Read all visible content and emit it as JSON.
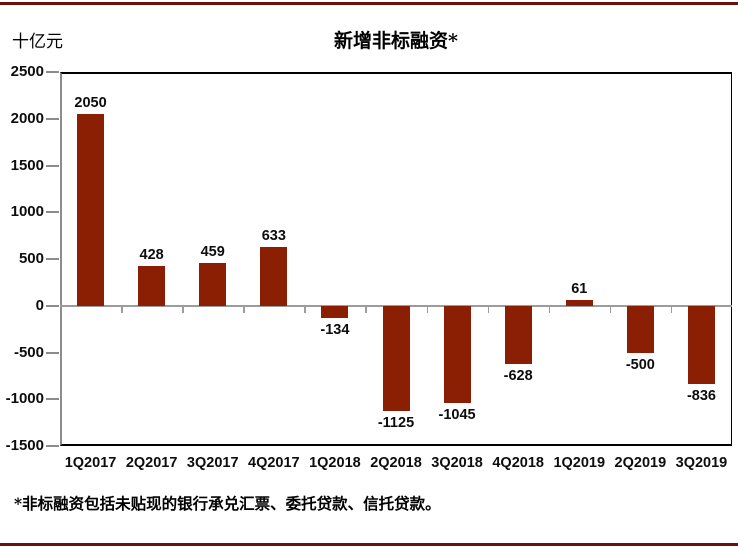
{
  "header": {
    "unit_label": "十亿元",
    "title": "新增非标融资*"
  },
  "footnote": "*非标融资包括未贴现的银行承兑汇票、委托贷款、信托贷款。",
  "colors": {
    "bar": "#8A1F03",
    "page_rule": "#6B0F0F",
    "zero_line": "#9c9c9c",
    "axis_gray": "#8c8c8c",
    "plot_border": "#000000"
  },
  "chart_data": {
    "type": "bar",
    "title": "新增非标融资*",
    "ylabel": "十亿元",
    "xlabel": "",
    "categories": [
      "1Q2017",
      "2Q2017",
      "3Q2017",
      "4Q2017",
      "1Q2018",
      "2Q2018",
      "3Q2018",
      "4Q2018",
      "1Q2019",
      "2Q2019",
      "3Q2019"
    ],
    "values": [
      2050,
      428,
      459,
      633,
      -134,
      -1125,
      -1045,
      -628,
      61,
      -500,
      -836
    ],
    "data_labels": [
      "2050",
      "428",
      "459",
      "633",
      "-134",
      "-1125",
      "-1045",
      "-628",
      "61",
      "-500",
      "-836"
    ],
    "ylim": [
      -1500,
      2500
    ],
    "yticks": [
      2500,
      2000,
      1500,
      1000,
      500,
      0,
      -500,
      -1000,
      -1500
    ],
    "grid": false,
    "legend_position": "none",
    "bar_color": "#8A1F03"
  }
}
